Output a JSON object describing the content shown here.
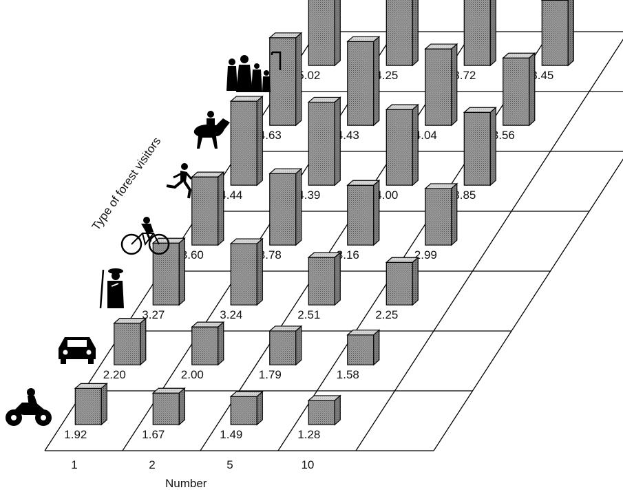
{
  "chart_data": {
    "type": "bar",
    "projection": "3d-oblique",
    "title": "",
    "xlabel": "Number",
    "ylabel": "Type of forest visitors",
    "categories": [
      "1",
      "2",
      "5",
      "10"
    ],
    "series": [
      {
        "icon": "motorcyclist-icon",
        "values": [
          1.92,
          1.67,
          1.49,
          1.28
        ]
      },
      {
        "icon": "car-icon",
        "values": [
          2.2,
          2.0,
          1.79,
          1.58
        ]
      },
      {
        "icon": "hunter-icon",
        "values": [
          3.27,
          3.24,
          2.51,
          2.25
        ]
      },
      {
        "icon": "cyclist-icon",
        "values": [
          3.6,
          3.78,
          3.16,
          2.99
        ]
      },
      {
        "icon": "jogger-icon",
        "values": [
          4.44,
          4.39,
          4.0,
          3.85
        ]
      },
      {
        "icon": "horse-rider-icon",
        "values": [
          4.63,
          4.43,
          4.04,
          3.56
        ]
      },
      {
        "icon": "hikers-family-icon",
        "values": [
          5.02,
          4.25,
          3.72,
          3.45
        ]
      }
    ],
    "value_labels": [
      [
        "1.92",
        "1.67",
        "1.49",
        "1.28"
      ],
      [
        "2.20",
        "2.00",
        "1.79",
        "1.58"
      ],
      [
        "3.27",
        "3.24",
        "2.51",
        "2.25"
      ],
      [
        "3.60",
        "3.78",
        "3.16",
        "2.99"
      ],
      [
        "4.44",
        "4.39",
        "4.00",
        "3.85"
      ],
      [
        "4.63",
        "4.43",
        "4.04",
        "3.56"
      ],
      [
        "5.02",
        "4.25",
        "3.72",
        "3.45"
      ]
    ],
    "grid": true,
    "bar_color": "#8a8a8a",
    "line_color": "#000000"
  }
}
